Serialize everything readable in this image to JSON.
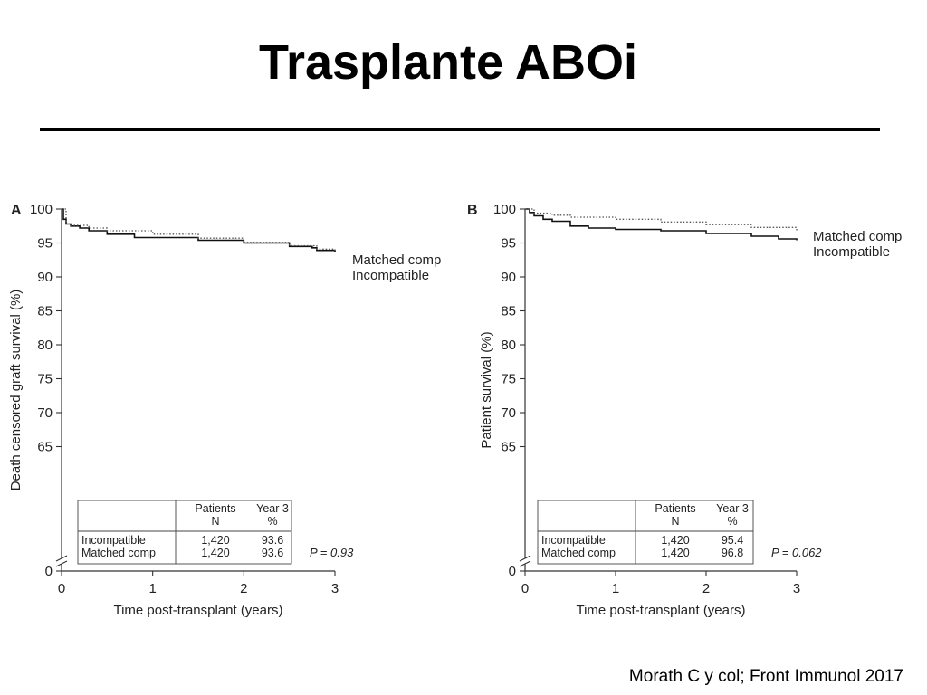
{
  "slide": {
    "title": "Trasplante ABOi",
    "citation": "Morath C y col; Front Immunol 2017"
  },
  "chart_data": [
    {
      "type": "line",
      "panel": "A",
      "ylabel": "Death censored graft survival (%)",
      "xlabel": "Time post-transplant (years)",
      "xlim": [
        0,
        3
      ],
      "ylim": [
        60,
        100
      ],
      "xticks": [
        0,
        1,
        2,
        3
      ],
      "yticks": [
        65,
        70,
        75,
        80,
        85,
        90,
        95,
        100
      ],
      "y_break_tick": 0,
      "series": [
        {
          "name": "Incompatible",
          "style": "solid",
          "color": "#111111",
          "x": [
            0,
            0.02,
            0.05,
            0.1,
            0.2,
            0.3,
            0.5,
            0.8,
            1.0,
            1.5,
            2.0,
            2.5,
            2.75,
            2.8,
            3.0
          ],
          "y": [
            100,
            98.5,
            97.8,
            97.5,
            97.2,
            96.8,
            96.3,
            95.8,
            95.8,
            95.4,
            95.0,
            94.5,
            94.3,
            93.9,
            93.6
          ]
        },
        {
          "name": "Matched comp",
          "style": "dotted",
          "color": "#555555",
          "x": [
            0,
            0.05,
            0.1,
            0.3,
            0.5,
            1.0,
            1.5,
            2.0,
            2.5,
            2.8,
            3.0
          ],
          "y": [
            100,
            97.8,
            97.6,
            97.2,
            96.8,
            96.3,
            95.7,
            95.1,
            94.6,
            94.1,
            93.6
          ]
        }
      ],
      "legend_order": [
        "Matched comp",
        "Incompatible"
      ],
      "table": {
        "headers": [
          "",
          "Patients\nN",
          "Year 3\n%"
        ],
        "header_line1": [
          "Patients",
          "Year 3"
        ],
        "header_line2": [
          "N",
          "%"
        ],
        "rows": [
          [
            "Incompatible",
            "1,420",
            "93.6"
          ],
          [
            "Matched comp",
            "1,420",
            "93.6"
          ]
        ]
      },
      "p_value": "P = 0.93"
    },
    {
      "type": "line",
      "panel": "B",
      "ylabel": "Patient survival (%)",
      "xlabel": "Time post-transplant (years)",
      "xlim": [
        0,
        3
      ],
      "ylim": [
        60,
        100
      ],
      "xticks": [
        0,
        1,
        2,
        3
      ],
      "yticks": [
        65,
        70,
        75,
        80,
        85,
        90,
        95,
        100
      ],
      "y_break_tick": 0,
      "series": [
        {
          "name": "Incompatible",
          "style": "solid",
          "color": "#111111",
          "x": [
            0,
            0.05,
            0.1,
            0.2,
            0.3,
            0.5,
            0.7,
            1.0,
            1.5,
            2.0,
            2.5,
            2.8,
            3.0
          ],
          "y": [
            100,
            99.5,
            99.0,
            98.5,
            98.2,
            97.5,
            97.2,
            97.0,
            96.8,
            96.4,
            96.0,
            95.6,
            95.4
          ]
        },
        {
          "name": "Matched comp",
          "style": "dotted",
          "color": "#555555",
          "x": [
            0,
            0.1,
            0.3,
            0.5,
            1.0,
            1.5,
            2.0,
            2.5,
            3.0
          ],
          "y": [
            100,
            99.4,
            99.1,
            98.8,
            98.5,
            98.1,
            97.7,
            97.3,
            96.8
          ]
        }
      ],
      "legend_order": [
        "Matched comp",
        "Incompatible"
      ],
      "table": {
        "header_line1": [
          "Patients",
          "Year 3"
        ],
        "header_line2": [
          "N",
          "%"
        ],
        "rows": [
          [
            "Incompatible",
            "1,420",
            "95.4"
          ],
          [
            "Matched comp",
            "1,420",
            "96.8"
          ]
        ]
      },
      "p_value": "P = 0.062"
    }
  ]
}
